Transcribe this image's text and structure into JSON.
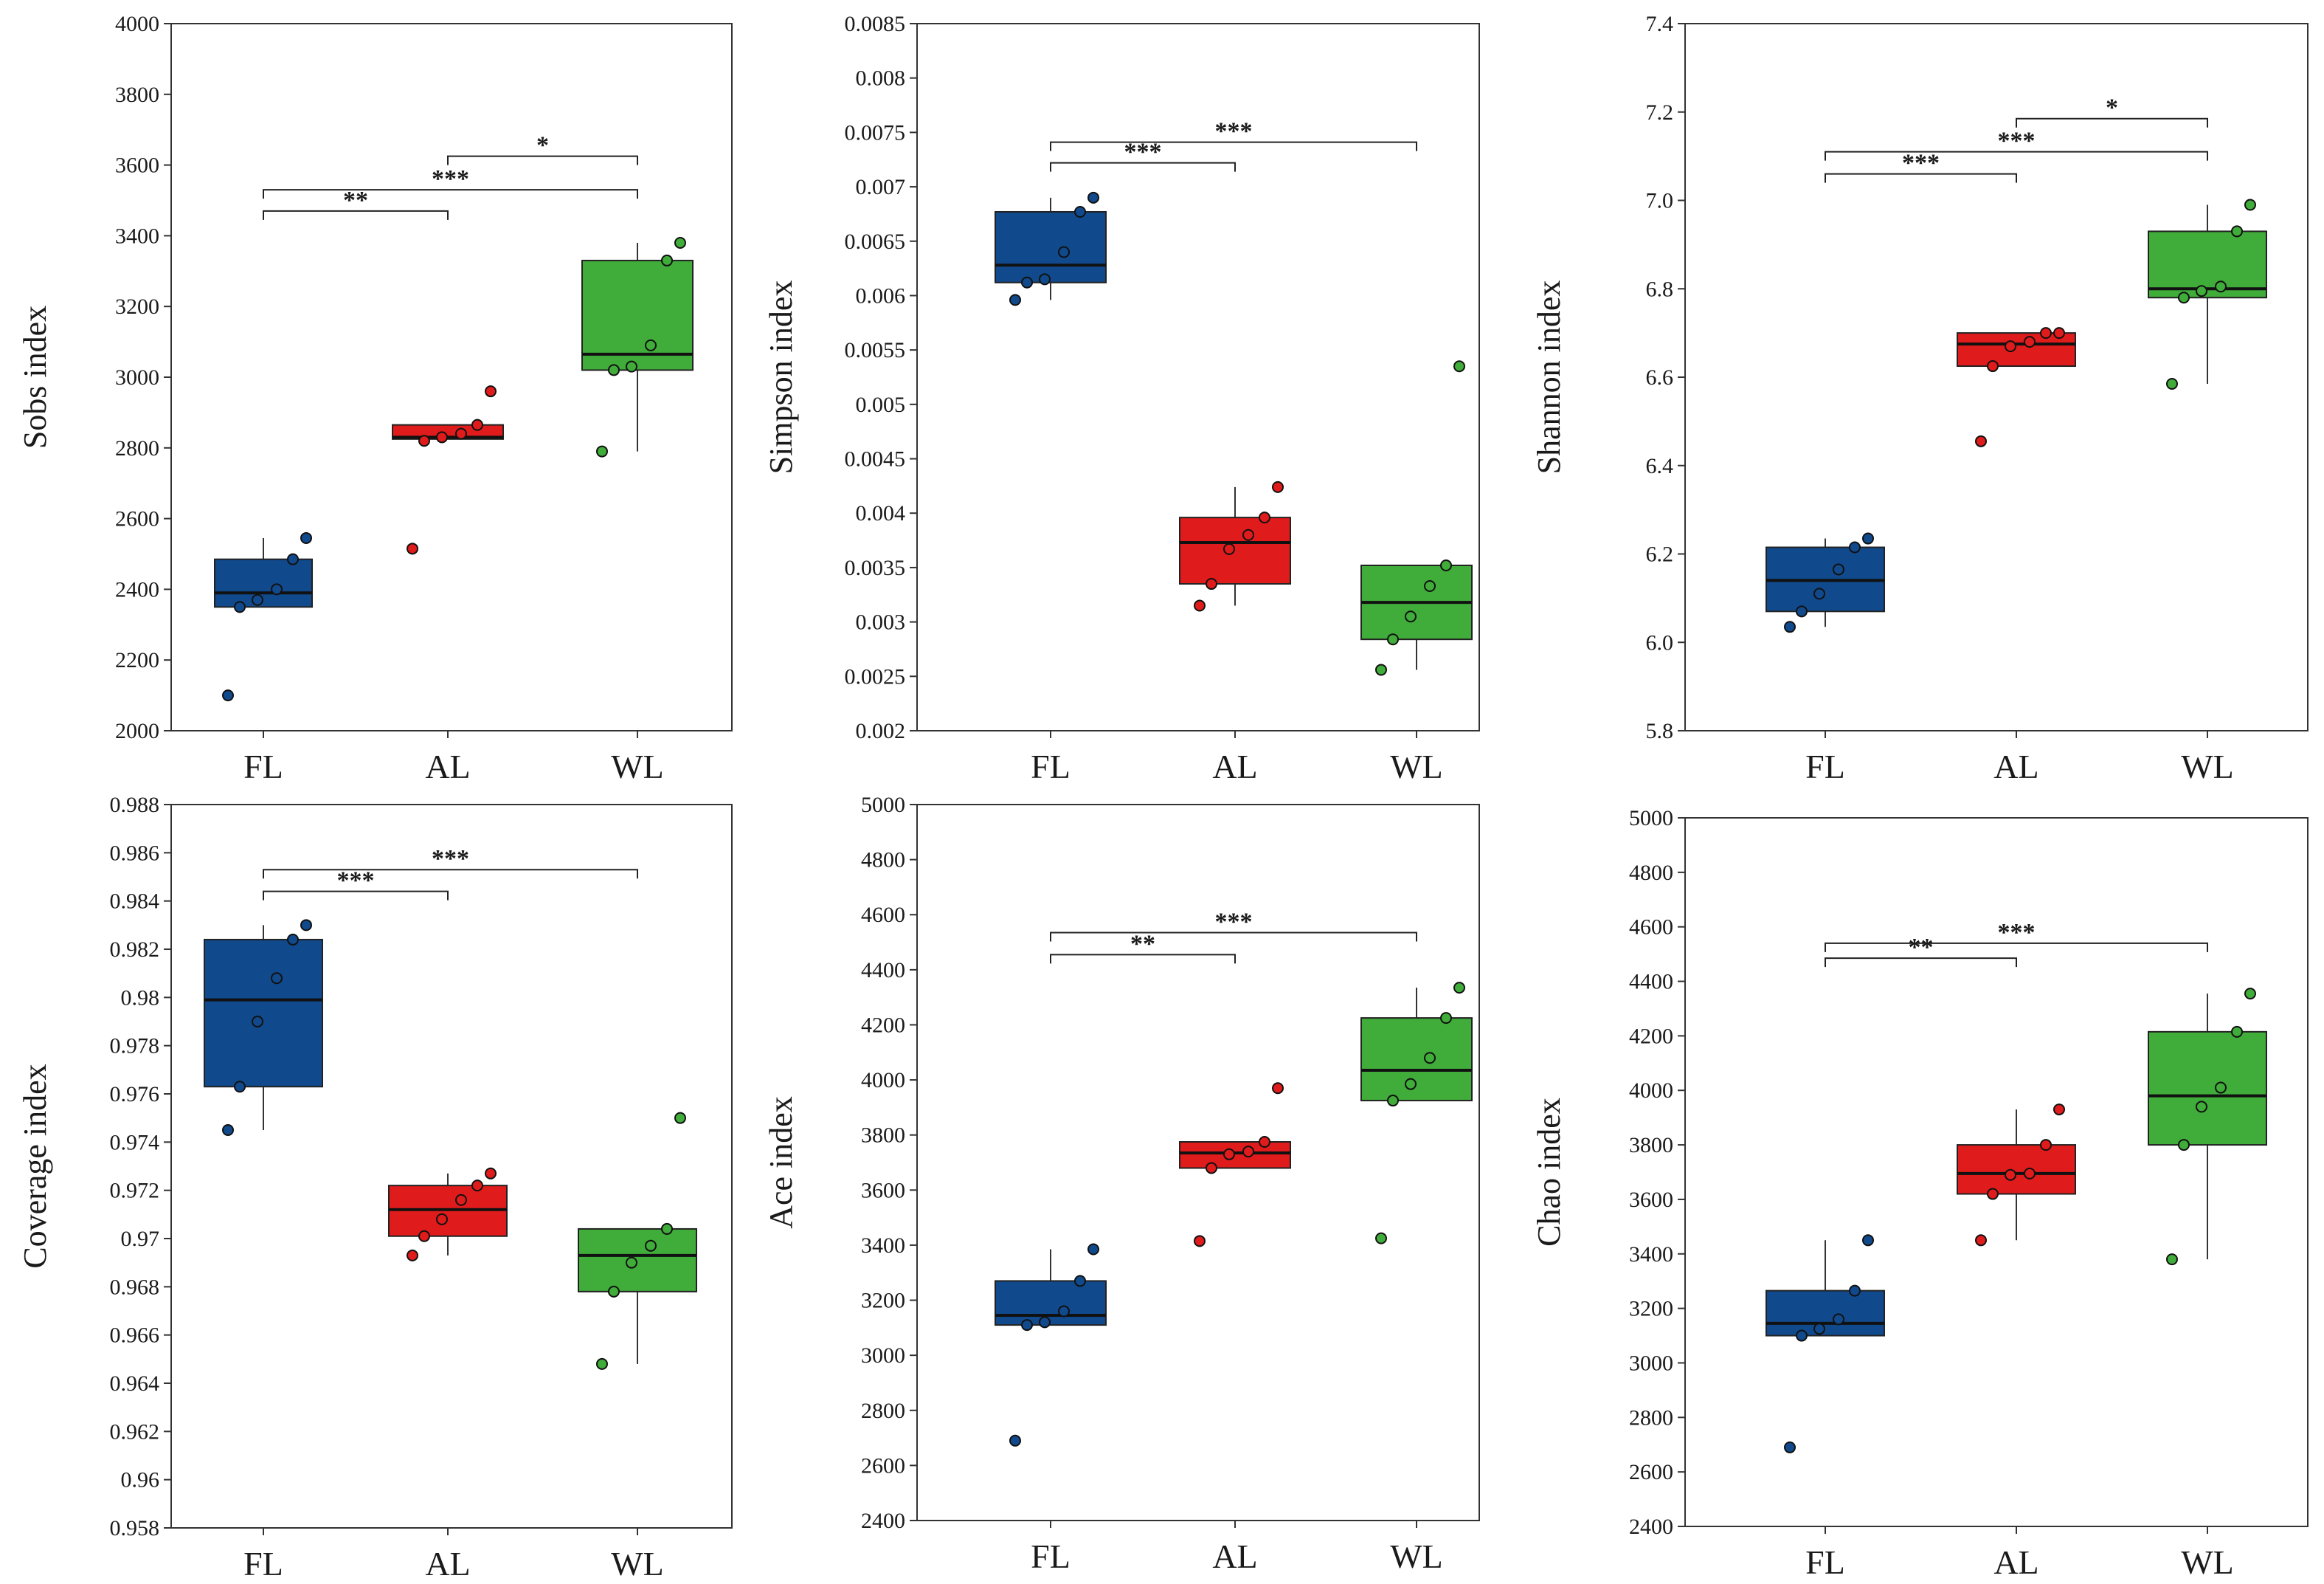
{
  "figure": {
    "groups": [
      "FL",
      "AL",
      "WL"
    ]
  },
  "colors": {
    "FL": "#114a8c",
    "AL": "#e01b1b",
    "WL": "#40ac3a"
  },
  "chart_data": [
    {
      "type": "box",
      "ylabel": "Sobs index",
      "ylim": [
        2000,
        4000
      ],
      "ytick_step": 200,
      "yticks": [
        "2000",
        "2200",
        "2400",
        "2600",
        "2800",
        "3000",
        "3200",
        "3400",
        "3600",
        "3800",
        "4000"
      ],
      "categories": [
        "FL",
        "AL",
        "WL"
      ],
      "boxes": [
        {
          "group": "FL",
          "q1": 2350,
          "median": 2390,
          "q3": 2485,
          "whisker_low": 2350,
          "whisker_high": 2545,
          "points": [
            2100,
            2350,
            2370,
            2400,
            2485,
            2545
          ]
        },
        {
          "group": "AL",
          "q1": 2825,
          "median": 2830,
          "q3": 2865,
          "whisker_low": 2825,
          "whisker_high": 2865,
          "points": [
            2515,
            2820,
            2830,
            2840,
            2865,
            2960
          ]
        },
        {
          "group": "WL",
          "q1": 3020,
          "median": 3065,
          "q3": 3330,
          "whisker_low": 2790,
          "whisker_high": 3380,
          "points": [
            2790,
            3020,
            3030,
            3090,
            3330,
            3380
          ]
        }
      ],
      "significance": [
        {
          "from": "AL",
          "to": "WL",
          "y": 3625,
          "label": "*"
        },
        {
          "from": "FL",
          "to": "WL",
          "y": 3530,
          "label": "***"
        },
        {
          "from": "FL",
          "to": "AL",
          "y": 3470,
          "label": "**"
        }
      ]
    },
    {
      "type": "box",
      "ylabel": "Simpson index",
      "ylim": [
        0.002,
        0.0085
      ],
      "ytick_step": 0.0005,
      "yticks": [
        "0.002",
        "0.0025",
        "0.003",
        "0.0035",
        "0.004",
        "0.0045",
        "0.005",
        "0.0055",
        "0.006",
        "0.0065",
        "0.007",
        "0.0075",
        "0.008",
        "0.0085"
      ],
      "categories": [
        "FL",
        "AL",
        "WL"
      ],
      "boxes": [
        {
          "group": "FL",
          "q1": 0.00612,
          "median": 0.00628,
          "q3": 0.00677,
          "whisker_low": 0.00596,
          "whisker_high": 0.0069,
          "points": [
            0.00596,
            0.00612,
            0.00615,
            0.0064,
            0.00677,
            0.0069
          ]
        },
        {
          "group": "AL",
          "q1": 0.00335,
          "median": 0.00373,
          "q3": 0.00396,
          "whisker_low": 0.00315,
          "whisker_high": 0.00424,
          "points": [
            0.00315,
            0.00335,
            0.00367,
            0.0038,
            0.00396,
            0.00424
          ]
        },
        {
          "group": "WL",
          "q1": 0.00284,
          "median": 0.00318,
          "q3": 0.00352,
          "whisker_low": 0.00256,
          "whisker_high": 0.00352,
          "points": [
            0.00256,
            0.00284,
            0.00305,
            0.00333,
            0.00352,
            0.00535
          ]
        }
      ],
      "significance": [
        {
          "from": "FL",
          "to": "WL",
          "y": 0.00741,
          "label": "***"
        },
        {
          "from": "FL",
          "to": "AL",
          "y": 0.00722,
          "label": "***"
        }
      ]
    },
    {
      "type": "box",
      "ylabel": "Shannon index",
      "ylim": [
        5.8,
        7.4
      ],
      "ytick_step": 0.2,
      "yticks": [
        "5.8",
        "6.0",
        "6.2",
        "6.4",
        "6.6",
        "6.8",
        "7.0",
        "7.2",
        "7.4"
      ],
      "categories": [
        "FL",
        "AL",
        "WL"
      ],
      "boxes": [
        {
          "group": "FL",
          "q1": 6.07,
          "median": 6.14,
          "q3": 6.215,
          "whisker_low": 6.035,
          "whisker_high": 6.235,
          "points": [
            6.035,
            6.07,
            6.11,
            6.165,
            6.215,
            6.235
          ]
        },
        {
          "group": "AL",
          "q1": 6.625,
          "median": 6.675,
          "q3": 6.7,
          "whisker_low": 6.625,
          "whisker_high": 6.7,
          "points": [
            6.455,
            6.625,
            6.67,
            6.68,
            6.7,
            6.7
          ]
        },
        {
          "group": "WL",
          "q1": 6.78,
          "median": 6.8,
          "q3": 6.93,
          "whisker_low": 6.585,
          "whisker_high": 6.99,
          "points": [
            6.585,
            6.78,
            6.795,
            6.805,
            6.93,
            6.99
          ]
        }
      ],
      "significance": [
        {
          "from": "AL",
          "to": "WL",
          "y": 7.185,
          "label": "*"
        },
        {
          "from": "FL",
          "to": "WL",
          "y": 7.11,
          "label": "***"
        },
        {
          "from": "FL",
          "to": "AL",
          "y": 7.06,
          "label": "***"
        }
      ]
    },
    {
      "type": "box",
      "ylabel": "Coverage index",
      "ylim": [
        0.958,
        0.988
      ],
      "ytick_step": 0.002,
      "yticks": [
        "0.958",
        "0.96",
        "0.962",
        "0.964",
        "0.966",
        "0.968",
        "0.97",
        "0.972",
        "0.974",
        "0.976",
        "0.978",
        "0.98",
        "0.982",
        "0.984",
        "0.986",
        "0.988"
      ],
      "categories": [
        "FL",
        "AL",
        "WL"
      ],
      "boxes": [
        {
          "group": "FL",
          "q1": 0.9763,
          "median": 0.9799,
          "q3": 0.9824,
          "whisker_low": 0.9745,
          "whisker_high": 0.983,
          "points": [
            0.9745,
            0.9763,
            0.979,
            0.9808,
            0.9824,
            0.983
          ]
        },
        {
          "group": "AL",
          "q1": 0.9701,
          "median": 0.9712,
          "q3": 0.9722,
          "whisker_low": 0.9693,
          "whisker_high": 0.9727,
          "points": [
            0.9693,
            0.9701,
            0.9708,
            0.9716,
            0.9722,
            0.9727
          ]
        },
        {
          "group": "WL",
          "q1": 0.9678,
          "median": 0.9693,
          "q3": 0.9704,
          "whisker_low": 0.9648,
          "whisker_high": 0.9704,
          "points": [
            0.9648,
            0.9678,
            0.969,
            0.9697,
            0.9704,
            0.975
          ]
        }
      ],
      "significance": [
        {
          "from": "FL",
          "to": "WL",
          "y": 0.9853,
          "label": "***"
        },
        {
          "from": "FL",
          "to": "AL",
          "y": 0.9844,
          "label": "***"
        }
      ]
    },
    {
      "type": "box",
      "ylabel": "Ace index",
      "ylim": [
        2400,
        5000
      ],
      "ytick_step": 200,
      "yticks": [
        "2400",
        "2600",
        "2800",
        "3000",
        "3200",
        "3400",
        "3600",
        "3800",
        "4000",
        "4200",
        "4400",
        "4600",
        "4800",
        "5000"
      ],
      "categories": [
        "FL",
        "AL",
        "WL"
      ],
      "boxes": [
        {
          "group": "FL",
          "q1": 3110,
          "median": 3145,
          "q3": 3270,
          "whisker_low": 3110,
          "whisker_high": 3385,
          "points": [
            2690,
            3110,
            3120,
            3160,
            3270,
            3385
          ]
        },
        {
          "group": "AL",
          "q1": 3680,
          "median": 3735,
          "q3": 3775,
          "whisker_low": 3680,
          "whisker_high": 3775,
          "points": [
            3415,
            3680,
            3730,
            3740,
            3775,
            3970
          ]
        },
        {
          "group": "WL",
          "q1": 3925,
          "median": 4035,
          "q3": 4225,
          "whisker_low": 3925,
          "whisker_high": 4335,
          "points": [
            3425,
            3925,
            3985,
            4080,
            4225,
            4335
          ]
        }
      ],
      "significance": [
        {
          "from": "FL",
          "to": "WL",
          "y": 4535,
          "label": "***"
        },
        {
          "from": "FL",
          "to": "AL",
          "y": 4455,
          "label": "**"
        }
      ]
    },
    {
      "type": "box",
      "ylabel": "Chao index",
      "ylim": [
        2400,
        5000
      ],
      "ytick_step": 200,
      "yticks": [
        "2400",
        "2600",
        "2800",
        "3000",
        "3200",
        "3400",
        "3600",
        "3800",
        "4000",
        "4200",
        "4400",
        "4600",
        "4800",
        "5000"
      ],
      "categories": [
        "FL",
        "AL",
        "WL"
      ],
      "boxes": [
        {
          "group": "FL",
          "q1": 3100,
          "median": 3145,
          "q3": 3265,
          "whisker_low": 3100,
          "whisker_high": 3450,
          "points": [
            2690,
            3100,
            3125,
            3160,
            3265,
            3450
          ]
        },
        {
          "group": "AL",
          "q1": 3620,
          "median": 3695,
          "q3": 3800,
          "whisker_low": 3450,
          "whisker_high": 3930,
          "points": [
            3450,
            3620,
            3690,
            3695,
            3800,
            3930
          ]
        },
        {
          "group": "WL",
          "q1": 3800,
          "median": 3980,
          "q3": 4215,
          "whisker_low": 3380,
          "whisker_high": 4355,
          "points": [
            3380,
            3800,
            3940,
            4010,
            4215,
            4355
          ]
        }
      ],
      "significance": [
        {
          "from": "FL",
          "to": "WL",
          "y": 4540,
          "label": "***"
        },
        {
          "from": "FL",
          "to": "AL",
          "y": 4485,
          "label": "**"
        }
      ]
    }
  ]
}
